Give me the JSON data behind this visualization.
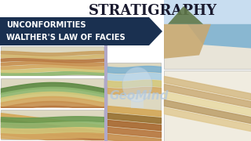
{
  "title": "STRATIGRAPHY",
  "title_fontsize": 13,
  "title_color": "#1a1a2e",
  "title_font": "serif",
  "banner_text_line1": "UNCONFORMITIES",
  "banner_text_line2": "WALTHER'S LAW OF FACIES",
  "banner_color": "#1a3050",
  "banner_text_color": "#ffffff",
  "banner_fontsize": 7.2,
  "bg_color": "#ffffff",
  "watermark": "GeoMind",
  "watermark_color": "#b0c8e0",
  "watermark_fontsize": 11,
  "panel_bg": "#e8e4d8",
  "panel_edge": "#aaaaaa",
  "divider_color": "#c8c0b0"
}
